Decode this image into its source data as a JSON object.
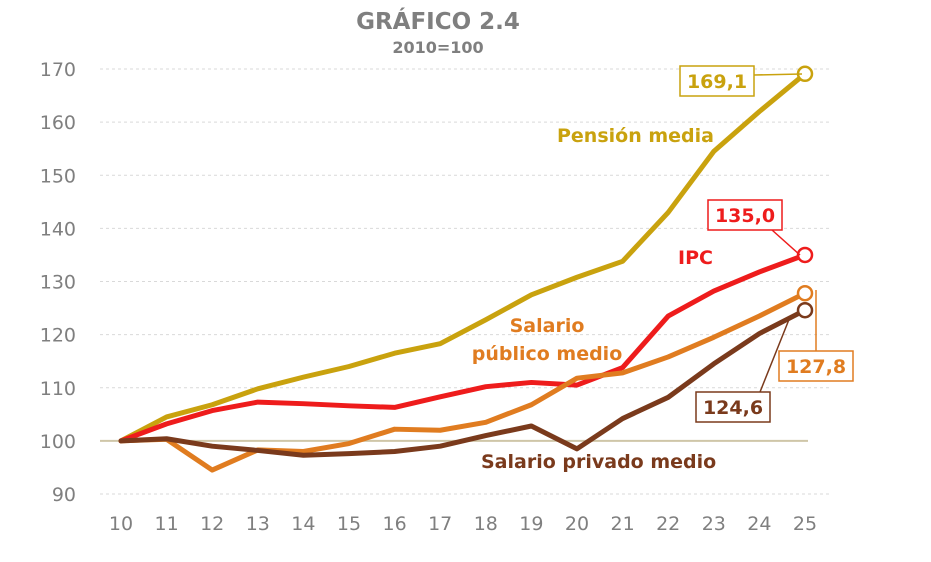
{
  "chart_data": {
    "type": "line",
    "title": "GRÁFICO 2.4",
    "subtitle": "2010=100",
    "xlabel": "",
    "ylabel": "",
    "categories": [
      "10",
      "11",
      "12",
      "13",
      "14",
      "15",
      "16",
      "17",
      "18",
      "19",
      "20",
      "21",
      "22",
      "23",
      "24",
      "25"
    ],
    "ylim": [
      90,
      170
    ],
    "yticks": [
      90,
      100,
      110,
      120,
      130,
      140,
      150,
      160,
      170
    ],
    "grid": true,
    "legend": "none",
    "series": [
      {
        "name": "Pensión media",
        "color": "#c9a20e",
        "values": [
          100,
          104.5,
          106.8,
          109.8,
          112.0,
          114.0,
          116.5,
          118.3,
          122.8,
          127.5,
          130.8,
          133.8,
          143.0,
          154.5,
          162.0,
          169.1
        ],
        "end_label": "169,1"
      },
      {
        "name": "IPC",
        "color": "#ee1c1c",
        "values": [
          100,
          103.2,
          105.7,
          107.3,
          107.0,
          106.6,
          106.3,
          108.3,
          110.2,
          111.0,
          110.5,
          113.8,
          123.5,
          128.2,
          131.8,
          135.0
        ],
        "end_label": "135,0"
      },
      {
        "name": "Salario público medio",
        "color": "#e07c20",
        "values": [
          100,
          100.3,
          94.5,
          98.3,
          98.0,
          99.5,
          102.2,
          102.0,
          103.5,
          106.8,
          111.8,
          112.8,
          115.8,
          119.5,
          123.5,
          127.8
        ],
        "end_label": "127,8"
      },
      {
        "name": "Salario privado medio",
        "color": "#7a3a1c",
        "values": [
          100,
          100.4,
          99.0,
          98.2,
          97.3,
          97.6,
          98.0,
          99.0,
          101.0,
          102.8,
          98.5,
          104.2,
          108.2,
          114.5,
          120.2,
          124.6
        ],
        "end_label": "124,6"
      }
    ],
    "baseline": {
      "value": 100,
      "color": "#cfc6a8"
    }
  },
  "labels": {
    "pension": "Pensión media",
    "ipc": "IPC",
    "publico_1": "Salario",
    "publico_2": "público medio",
    "privado": "Salario privado medio"
  }
}
